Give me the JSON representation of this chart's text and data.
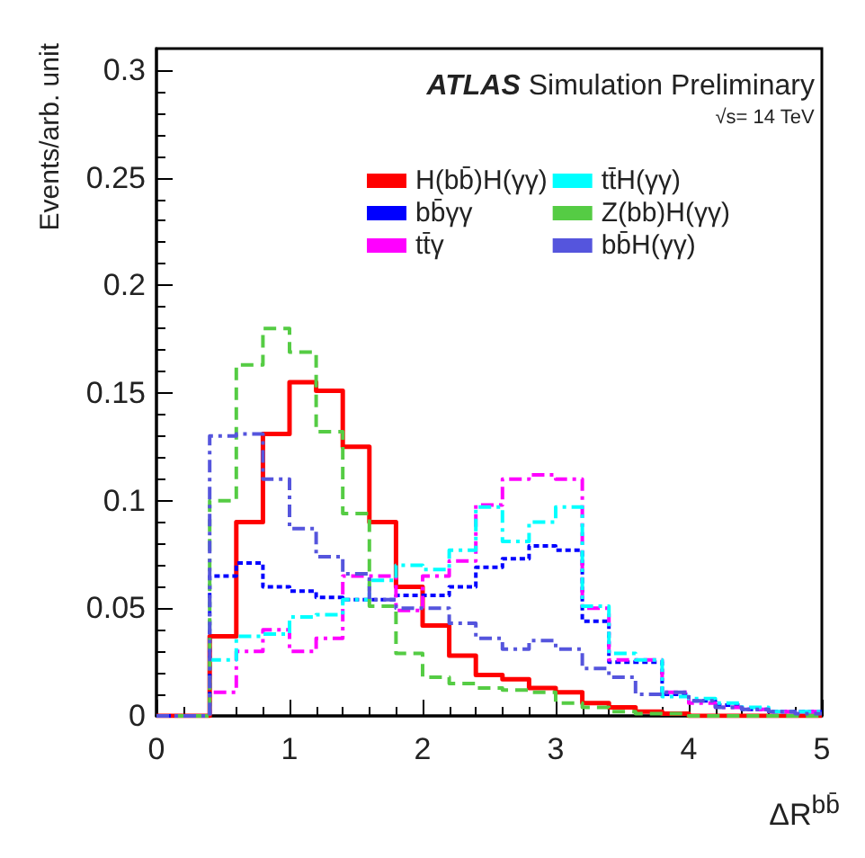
{
  "chart_data": {
    "type": "histogram",
    "xlabel": "ΔR$^{bb̄}$",
    "ylabel": "Events/arb. unit",
    "annotations": [
      "ATLAS Simulation Preliminary",
      "√s= 14 TeV"
    ],
    "bins": [
      0,
      0.2,
      0.4,
      0.6,
      0.8,
      1.0,
      1.2,
      1.4,
      1.6,
      1.8,
      2.0,
      2.2,
      2.4,
      2.6,
      2.8,
      3.0,
      3.2,
      3.4,
      3.6,
      3.8,
      4.0,
      4.2,
      4.4,
      4.6,
      4.8,
      5.0
    ],
    "series": [
      {
        "name": "H(bb̄)H(γγ)",
        "color": "#ff0000",
        "line_style": "solid",
        "values": [
          0,
          0,
          0.037,
          0.09,
          0.131,
          0.155,
          0.151,
          0.125,
          0.09,
          0.06,
          0.042,
          0.028,
          0.019,
          0.017,
          0.013,
          0.011,
          0.006,
          0.004,
          0.002,
          0.001,
          0,
          0,
          0,
          0,
          0
        ]
      },
      {
        "name": "bb̄γγ",
        "color": "#0000ff",
        "line_style": "dotted",
        "values": [
          0,
          0,
          0.065,
          0.071,
          0.06,
          0.058,
          0.055,
          0.054,
          0.054,
          0.056,
          0.056,
          0.06,
          0.069,
          0.073,
          0.079,
          0.077,
          0.044,
          0.025,
          0.025,
          0.01,
          0.007,
          0.005,
          0.003,
          0.002,
          0.002
        ]
      },
      {
        "name": "tt̄γ",
        "color": "#ff00ff",
        "line_style": "dashed",
        "values": [
          0,
          0,
          0.011,
          0.03,
          0.04,
          0.03,
          0.036,
          0.065,
          0.065,
          0.049,
          0.065,
          0.072,
          0.098,
          0.11,
          0.112,
          0.11,
          0.05,
          0.026,
          0.026,
          0.011,
          0.006,
          0.004,
          0.003,
          0.002,
          0.002
        ]
      },
      {
        "name": "tt̄H(γγ)",
        "color": "#00ffff",
        "line_style": "dashed",
        "values": [
          0,
          0,
          0.026,
          0.037,
          0.038,
          0.046,
          0.047,
          0.054,
          0.063,
          0.07,
          0.068,
          0.077,
          0.097,
          0.081,
          0.09,
          0.097,
          0.051,
          0.029,
          0.026,
          0.009,
          0.008,
          0.006,
          0.004,
          0.002,
          0.002
        ]
      },
      {
        "name": "Z(bb)H(γγ)",
        "color": "#55cc44",
        "line_style": "dashed",
        "values": [
          0,
          0,
          0.1,
          0.163,
          0.18,
          0.169,
          0.132,
          0.094,
          0.051,
          0.029,
          0.018,
          0.015,
          0.013,
          0.012,
          0.011,
          0.006,
          0.004,
          0.002,
          0.001,
          0.001,
          0,
          0,
          0,
          0,
          0
        ]
      },
      {
        "name": "bb̄H(γγ)",
        "color": "#5555dd",
        "line_style": "dashed",
        "values": [
          0,
          0,
          0.13,
          0.131,
          0.11,
          0.087,
          0.074,
          0.066,
          0.054,
          0.05,
          0.05,
          0.043,
          0.036,
          0.031,
          0.035,
          0.031,
          0.022,
          0.018,
          0.01,
          0.011,
          0.007,
          0.004,
          0.003,
          0.002,
          0.001
        ]
      }
    ],
    "xlim": [
      0,
      5
    ],
    "xticks": [
      0,
      1,
      2,
      3,
      4,
      5
    ],
    "ylim": [
      0,
      0.31
    ],
    "yticks": [
      0,
      0.05,
      0.1,
      0.15,
      0.2,
      0.25,
      0.3
    ],
    "grid": false,
    "legend": "top right"
  }
}
